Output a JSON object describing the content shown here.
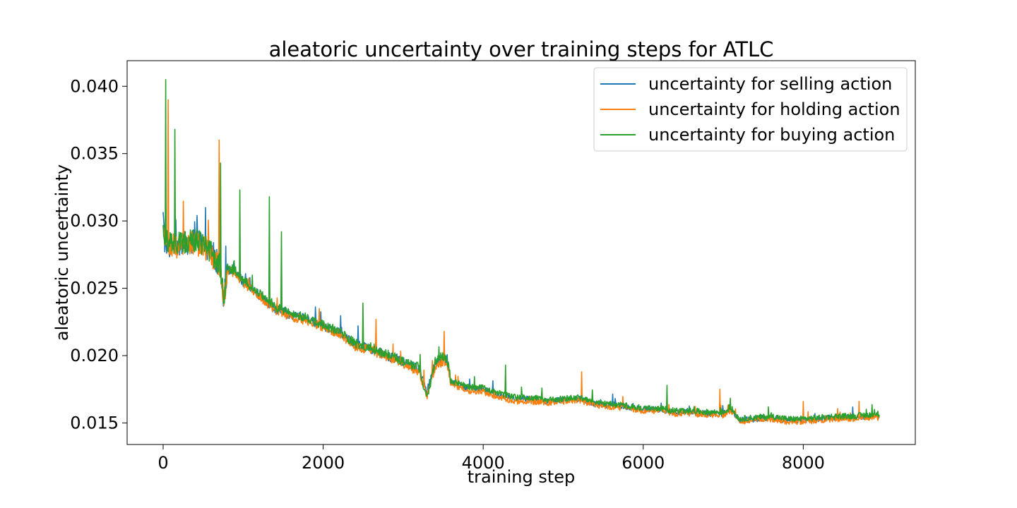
{
  "chart_data": {
    "type": "line",
    "title": "aleatoric uncertainty over training steps for ATLC",
    "xlabel": "training step",
    "ylabel": "aleatoric uncertainty",
    "xlim": [
      -450,
      9400
    ],
    "ylim": [
      0.0134,
      0.0419
    ],
    "xticks": [
      0,
      2000,
      4000,
      6000,
      8000
    ],
    "xtick_labels": [
      "0",
      "2000",
      "4000",
      "6000",
      "8000"
    ],
    "yticks": [
      0.015,
      0.02,
      0.025,
      0.03,
      0.035,
      0.04
    ],
    "ytick_labels": [
      "0.015",
      "0.020",
      "0.025",
      "0.030",
      "0.035",
      "0.040"
    ],
    "grid": false,
    "legend_position": "top-right",
    "x": [
      0,
      20,
      50,
      100,
      200,
      300,
      400,
      500,
      600,
      700,
      760,
      800,
      900,
      1000,
      1200,
      1400,
      1600,
      1800,
      2000,
      2200,
      2400,
      2600,
      2800,
      3000,
      3200,
      3300,
      3400,
      3500,
      3550,
      3600,
      3800,
      4000,
      4200,
      4400,
      4600,
      4800,
      5000,
      5200,
      5400,
      5600,
      5800,
      6000,
      6200,
      6400,
      6600,
      6800,
      7000,
      7100,
      7200,
      7400,
      7600,
      7800,
      8000,
      8200,
      8400,
      8600,
      8800,
      8950
    ],
    "series": [
      {
        "name": "uncertainty for selling action",
        "color": "#1f77b4",
        "values": [
          0.03,
          0.0285,
          0.028,
          0.0283,
          0.0282,
          0.0284,
          0.0285,
          0.0282,
          0.0275,
          0.0268,
          0.0242,
          0.0265,
          0.0262,
          0.0255,
          0.0245,
          0.0235,
          0.023,
          0.0227,
          0.0222,
          0.0217,
          0.0208,
          0.0205,
          0.02,
          0.0195,
          0.019,
          0.0173,
          0.0195,
          0.0198,
          0.0195,
          0.018,
          0.0176,
          0.0175,
          0.0171,
          0.0168,
          0.0168,
          0.0166,
          0.0167,
          0.0168,
          0.0164,
          0.0163,
          0.0162,
          0.016,
          0.016,
          0.0158,
          0.0158,
          0.0157,
          0.0157,
          0.016,
          0.0152,
          0.0153,
          0.0154,
          0.0152,
          0.0152,
          0.0153,
          0.0154,
          0.0154,
          0.0155,
          0.0155
        ]
      },
      {
        "name": "uncertainty for holding action",
        "color": "#ff7f0e",
        "values": [
          0.0302,
          0.029,
          0.0282,
          0.0282,
          0.0281,
          0.0283,
          0.0284,
          0.0281,
          0.0274,
          0.0267,
          0.024,
          0.0264,
          0.0261,
          0.0254,
          0.0244,
          0.0234,
          0.0229,
          0.0226,
          0.0221,
          0.0216,
          0.0207,
          0.0204,
          0.0199,
          0.0194,
          0.0188,
          0.017,
          0.0192,
          0.0196,
          0.0193,
          0.0178,
          0.0174,
          0.0173,
          0.0169,
          0.0166,
          0.0166,
          0.0165,
          0.0166,
          0.0167,
          0.0163,
          0.0162,
          0.0161,
          0.0159,
          0.0159,
          0.0157,
          0.0157,
          0.0156,
          0.0156,
          0.0159,
          0.0151,
          0.0152,
          0.0153,
          0.0151,
          0.0151,
          0.0152,
          0.0153,
          0.0153,
          0.0154,
          0.0154
        ]
      },
      {
        "name": "uncertainty for buying action",
        "color": "#2ca02c",
        "values": [
          0.0298,
          0.0288,
          0.0284,
          0.0284,
          0.0283,
          0.0285,
          0.0286,
          0.0283,
          0.0276,
          0.0269,
          0.0241,
          0.0266,
          0.0263,
          0.0256,
          0.0246,
          0.0236,
          0.0231,
          0.0228,
          0.0223,
          0.0218,
          0.0209,
          0.0206,
          0.0201,
          0.0196,
          0.0191,
          0.0168,
          0.0196,
          0.02,
          0.0197,
          0.0181,
          0.0177,
          0.0176,
          0.0172,
          0.0169,
          0.0169,
          0.0167,
          0.0168,
          0.0169,
          0.0165,
          0.0164,
          0.0163,
          0.0161,
          0.0161,
          0.0159,
          0.0159,
          0.0158,
          0.0158,
          0.0161,
          0.0153,
          0.0154,
          0.0155,
          0.0153,
          0.0153,
          0.0154,
          0.0155,
          0.0155,
          0.0156,
          0.0156
        ]
      }
    ],
    "spikes": [
      {
        "series": 2,
        "x": 30,
        "y": 0.0405
      },
      {
        "series": 1,
        "x": 60,
        "y": 0.039
      },
      {
        "series": 2,
        "x": 150,
        "y": 0.0368
      },
      {
        "series": 1,
        "x": 700,
        "y": 0.036
      },
      {
        "series": 2,
        "x": 720,
        "y": 0.0343
      },
      {
        "series": 2,
        "x": 960,
        "y": 0.0323
      },
      {
        "series": 2,
        "x": 1330,
        "y": 0.0318
      },
      {
        "series": 2,
        "x": 1480,
        "y": 0.0292
      },
      {
        "series": 2,
        "x": 2500,
        "y": 0.0239
      },
      {
        "series": 1,
        "x": 2660,
        "y": 0.0227
      },
      {
        "series": 1,
        "x": 3510,
        "y": 0.0218
      },
      {
        "series": 2,
        "x": 4280,
        "y": 0.0193
      },
      {
        "series": 1,
        "x": 5230,
        "y": 0.0188
      },
      {
        "series": 2,
        "x": 6300,
        "y": 0.0178
      },
      {
        "series": 1,
        "x": 6960,
        "y": 0.0175
      },
      {
        "series": 1,
        "x": 8000,
        "y": 0.0166
      },
      {
        "series": 1,
        "x": 8700,
        "y": 0.0166
      }
    ]
  }
}
